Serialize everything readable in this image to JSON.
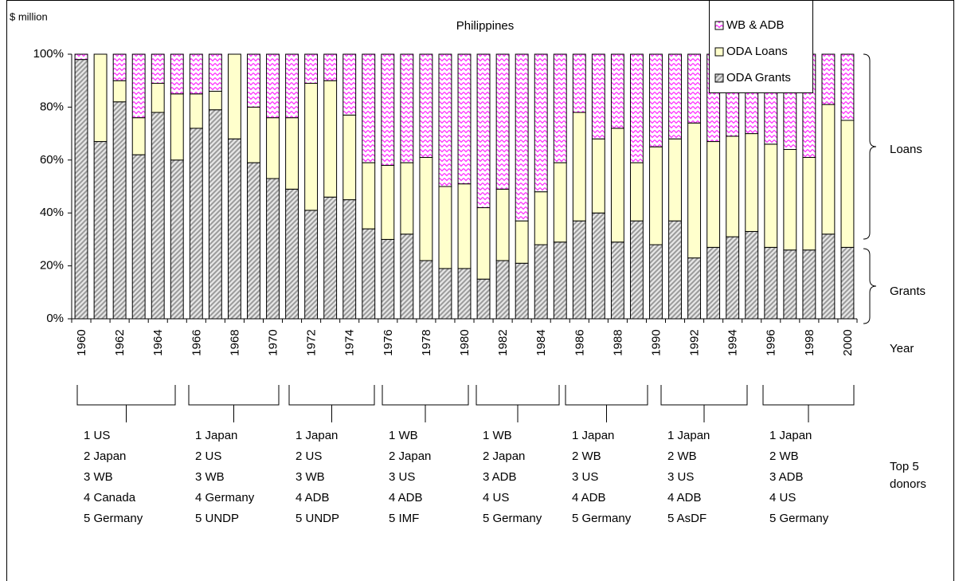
{
  "chart_data": {
    "type": "stacked_bar_percent",
    "title": "Philippines",
    "y_axis_label": "$ million",
    "x_axis_label": "Year",
    "categories": [
      "1960",
      null,
      "1962",
      null,
      "1964",
      null,
      "1966",
      null,
      "1968",
      null,
      "1970",
      null,
      "1972",
      null,
      "1974",
      null,
      "1976",
      null,
      "1978",
      null,
      "1980",
      null,
      "1982",
      null,
      "1984",
      null,
      "1986",
      null,
      "1988",
      null,
      "1990",
      null,
      "1992",
      null,
      "1994",
      null,
      "1996",
      null,
      "1998",
      null,
      "2000"
    ],
    "series": [
      {
        "name": "ODA Grants",
        "color": "#9a9a9a",
        "values": [
          98,
          67,
          82,
          62,
          78,
          60,
          72,
          79,
          68,
          59,
          53,
          49,
          41,
          46,
          45,
          34,
          30,
          32,
          22,
          19,
          19,
          15,
          22,
          21,
          28,
          29,
          37,
          40,
          29,
          37,
          28,
          37,
          23,
          27,
          31,
          33,
          27,
          26,
          26,
          32,
          27
        ]
      },
      {
        "name": "ODA Loans",
        "color": "#ffffcc",
        "values": [
          0,
          33,
          8,
          14,
          11,
          25,
          13,
          7,
          32,
          21,
          23,
          27,
          48,
          44,
          32,
          25,
          28,
          27,
          39,
          31,
          32,
          27,
          27,
          16,
          20,
          30,
          41,
          28,
          43,
          22,
          37,
          31,
          51,
          40,
          38,
          37,
          39,
          38,
          35,
          49,
          48
        ]
      },
      {
        "name": "WB & ADB",
        "color": "#ff33ff",
        "values": [
          2,
          0,
          10,
          24,
          11,
          15,
          15,
          14,
          0,
          20,
          24,
          24,
          11,
          10,
          23,
          41,
          42,
          41,
          39,
          50,
          49,
          58,
          51,
          63,
          52,
          41,
          22,
          32,
          28,
          41,
          35,
          32,
          26,
          33,
          31,
          30,
          34,
          36,
          39,
          19,
          25
        ]
      }
    ],
    "ylim": [
      0,
      100
    ],
    "yticks": [
      {
        "value": 0,
        "label": "0%"
      },
      {
        "value": 20,
        "label": "20%"
      },
      {
        "value": 40,
        "label": "40%"
      },
      {
        "value": 60,
        "label": "60%"
      },
      {
        "value": 80,
        "label": "80%"
      },
      {
        "value": 100,
        "label": "100%"
      }
    ],
    "grid": false,
    "legend_position": "upper right",
    "brace_labels": [
      "Loans",
      "Grants"
    ],
    "donors_label": [
      "Top 5",
      "donors"
    ],
    "donor_groups": [
      [
        "1 US",
        "2 Japan",
        "3 WB",
        "4 Canada",
        "5 Germany"
      ],
      [
        "1 Japan",
        "2 US",
        "3 WB",
        "4 Germany",
        "5 UNDP"
      ],
      [
        "1 Japan",
        "2 US",
        "3 WB",
        "4 ADB",
        "5 UNDP"
      ],
      [
        "1 WB",
        "2 Japan",
        "3 US",
        "4 ADB",
        "5 IMF"
      ],
      [
        "1 WB",
        "2 Japan",
        "3 ADB",
        "4 US",
        "5 Germany"
      ],
      [
        "1 Japan",
        "2 WB",
        "3 US",
        "4 ADB",
        "5 Germany"
      ],
      [
        "1 Japan",
        "2 WB",
        "3 US",
        "4 ADB",
        "5 AsDF"
      ],
      [
        "1 Japan",
        "2 WB",
        "3 ADB",
        "4 US",
        "5 Germany"
      ]
    ]
  }
}
